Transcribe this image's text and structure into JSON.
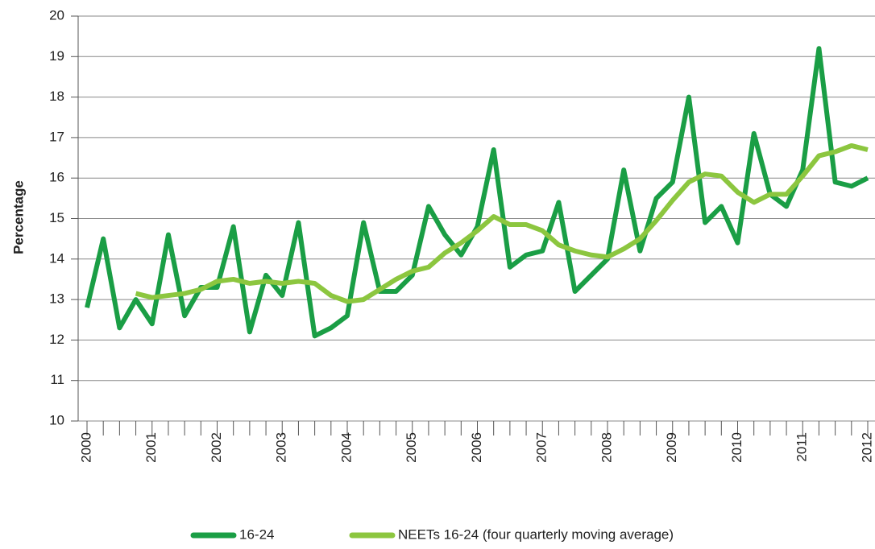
{
  "chart_data": {
    "type": "line",
    "y_label": "Percentage",
    "categories": [
      "2000",
      null,
      null,
      null,
      "2001",
      null,
      null,
      null,
      "2002",
      null,
      null,
      null,
      "2003",
      null,
      null,
      null,
      "2004",
      null,
      null,
      null,
      "2005",
      null,
      null,
      null,
      "2006",
      null,
      null,
      null,
      "2007",
      null,
      null,
      null,
      "2008",
      null,
      null,
      null,
      "2009",
      null,
      null,
      null,
      "2010",
      null,
      null,
      null,
      "2011",
      null,
      null,
      null,
      "2012"
    ],
    "series": [
      {
        "name": "16-24",
        "color": "#1a9e45",
        "values": [
          12.8,
          14.5,
          12.3,
          13.0,
          12.4,
          14.6,
          12.6,
          13.3,
          13.3,
          14.8,
          12.2,
          13.6,
          13.1,
          14.9,
          12.1,
          12.3,
          12.6,
          14.9,
          13.2,
          13.2,
          13.6,
          15.3,
          14.6,
          14.1,
          14.8,
          16.7,
          13.8,
          14.1,
          14.2,
          15.4,
          13.2,
          13.6,
          14.0,
          16.2,
          14.2,
          15.5,
          15.9,
          18.0,
          14.9,
          15.3,
          14.4,
          17.1,
          15.6,
          15.3,
          16.2,
          19.2,
          15.9,
          15.8,
          16.0
        ]
      },
      {
        "name": "NEETs 16-24 (four quarterly moving average)",
        "color": "#8cc63f",
        "values": [
          null,
          null,
          null,
          13.15,
          13.05,
          13.1,
          13.15,
          13.25,
          13.45,
          13.5,
          13.4,
          13.45,
          13.4,
          13.45,
          13.4,
          13.1,
          12.95,
          13.0,
          13.25,
          13.5,
          13.7,
          13.8,
          14.15,
          14.4,
          14.7,
          15.05,
          14.85,
          14.85,
          14.7,
          14.35,
          14.2,
          14.1,
          14.05,
          14.25,
          14.5,
          14.95,
          15.45,
          15.9,
          16.1,
          16.05,
          15.65,
          15.4,
          15.6,
          15.6,
          16.05,
          16.55,
          16.65,
          16.8,
          16.7
        ]
      }
    ],
    "ylim": [
      10,
      20
    ],
    "yticks": [
      10,
      11,
      12,
      13,
      14,
      15,
      16,
      17,
      18,
      19,
      20
    ],
    "grid": true
  }
}
